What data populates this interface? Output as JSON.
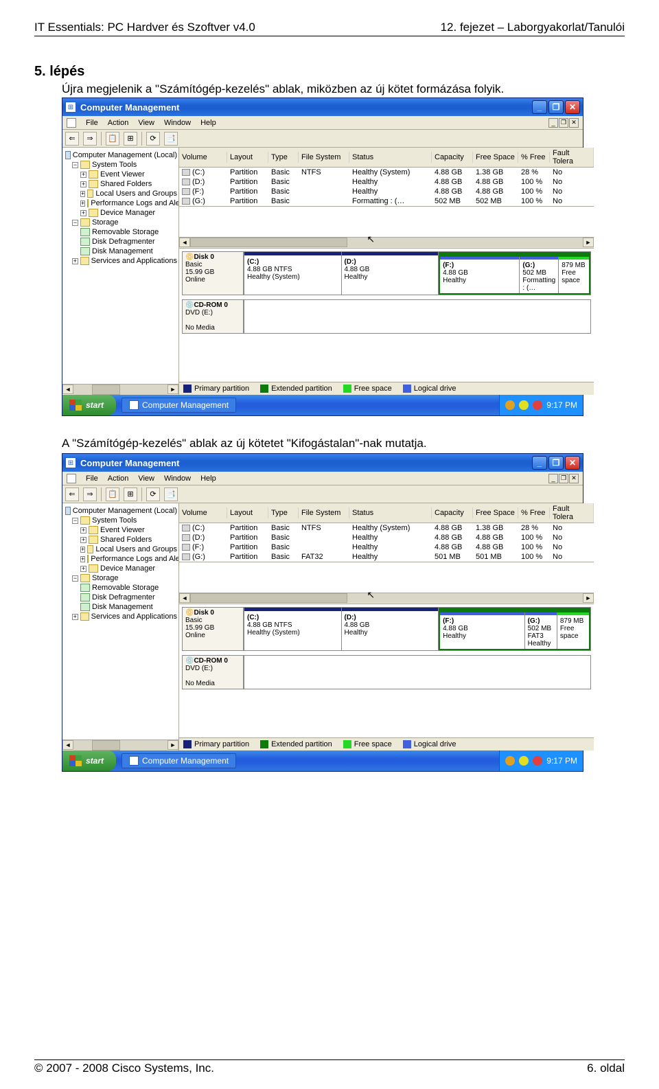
{
  "doc": {
    "header_left": "IT Essentials: PC Hardver és Szoftver v4.0",
    "header_right": "12. fejezet – Laborgyakorlat/Tanulói",
    "step_title": "5. lépés",
    "step_desc": "Újra megjelenik a \"Számítógép-kezelés\" ablak, miközben az új kötet formázása folyik.",
    "mid_desc": "A \"Számítógép-kezelés\" ablak az új kötetet \"Kifogástalan\"-nak mutatja.",
    "footer_left": "© 2007 - 2008 Cisco Systems, Inc.",
    "footer_right": "6. oldal"
  },
  "window": {
    "title": "Computer Management",
    "menus": [
      "File",
      "Action",
      "View",
      "Window",
      "Help"
    ],
    "tree": {
      "root": "Computer Management (Local)",
      "system_tools": "System Tools",
      "items_sys": [
        "Event Viewer",
        "Shared Folders",
        "Local Users and Groups",
        "Performance Logs and Alerts",
        "Device Manager"
      ],
      "storage": "Storage",
      "items_storage": [
        "Removable Storage",
        "Disk Defragmenter",
        "Disk Management"
      ],
      "services": "Services and Applications"
    },
    "vol_head": [
      "Volume",
      "Layout",
      "Type",
      "File System",
      "Status",
      "Capacity",
      "Free Space",
      "% Free",
      "Fault Tolera"
    ],
    "legend": {
      "primary": "Primary partition",
      "extended": "Extended partition",
      "free": "Free space",
      "logical": "Logical drive"
    },
    "disk0": {
      "name": "Disk 0",
      "kind": "Basic",
      "size": "15.99 GB",
      "state": "Online"
    },
    "cdrom": {
      "name": "CD-ROM 0",
      "kind": "DVD (E:)",
      "state": "No Media"
    },
    "taskbar": {
      "start": "start",
      "app": "Computer Management",
      "time": "9:17 PM"
    }
  },
  "shot1": {
    "rows": [
      {
        "v": "(C:)",
        "layout": "Partition",
        "type": "Basic",
        "fs": "NTFS",
        "status": "Healthy (System)",
        "cap": "4.88 GB",
        "free": "1.38 GB",
        "pct": "28 %",
        "fault": "No"
      },
      {
        "v": "(D:)",
        "layout": "Partition",
        "type": "Basic",
        "fs": "",
        "status": "Healthy",
        "cap": "4.88 GB",
        "free": "4.88 GB",
        "pct": "100 %",
        "fault": "No"
      },
      {
        "v": "(F:)",
        "layout": "Partition",
        "type": "Basic",
        "fs": "",
        "status": "Healthy",
        "cap": "4.88 GB",
        "free": "4.88 GB",
        "pct": "100 %",
        "fault": "No"
      },
      {
        "v": "(G:)",
        "layout": "Partition",
        "type": "Basic",
        "fs": "",
        "status": "Formatting : (…",
        "cap": "502 MB",
        "free": "502 MB",
        "pct": "100 %",
        "fault": "No"
      }
    ],
    "parts": {
      "c": {
        "label": "(C:)",
        "l2": "4.88 GB NTFS",
        "l3": "Healthy (System)"
      },
      "d": {
        "label": "(D:)",
        "l2": "4.88 GB",
        "l3": "Healthy"
      },
      "f": {
        "label": "(F:)",
        "l2": "4.88 GB",
        "l3": "Healthy"
      },
      "g": {
        "label": "(G:)",
        "l2": "502 MB",
        "l3": "Formatting : (…"
      },
      "free": {
        "label": "",
        "l2": "879 MB",
        "l3": "Free space"
      }
    }
  },
  "shot2": {
    "rows": [
      {
        "v": "(C:)",
        "layout": "Partition",
        "type": "Basic",
        "fs": "NTFS",
        "status": "Healthy (System)",
        "cap": "4.88 GB",
        "free": "1.38 GB",
        "pct": "28 %",
        "fault": "No"
      },
      {
        "v": "(D:)",
        "layout": "Partition",
        "type": "Basic",
        "fs": "",
        "status": "Healthy",
        "cap": "4.88 GB",
        "free": "4.88 GB",
        "pct": "100 %",
        "fault": "No"
      },
      {
        "v": "(F:)",
        "layout": "Partition",
        "type": "Basic",
        "fs": "",
        "status": "Healthy",
        "cap": "4.88 GB",
        "free": "4.88 GB",
        "pct": "100 %",
        "fault": "No"
      },
      {
        "v": "(G:)",
        "layout": "Partition",
        "type": "Basic",
        "fs": "FAT32",
        "status": "Healthy",
        "cap": "501 MB",
        "free": "501 MB",
        "pct": "100 %",
        "fault": "No"
      }
    ],
    "parts": {
      "c": {
        "label": "(C:)",
        "l2": "4.88 GB NTFS",
        "l3": "Healthy (System)"
      },
      "d": {
        "label": "(D:)",
        "l2": "4.88 GB",
        "l3": "Healthy"
      },
      "f": {
        "label": "(F:)",
        "l2": "4.88 GB",
        "l3": "Healthy"
      },
      "g": {
        "label": "(G:)",
        "l2": "502 MB FAT3",
        "l3": "Healthy"
      },
      "free": {
        "label": "",
        "l2": "879 MB",
        "l3": "Free space"
      }
    }
  }
}
